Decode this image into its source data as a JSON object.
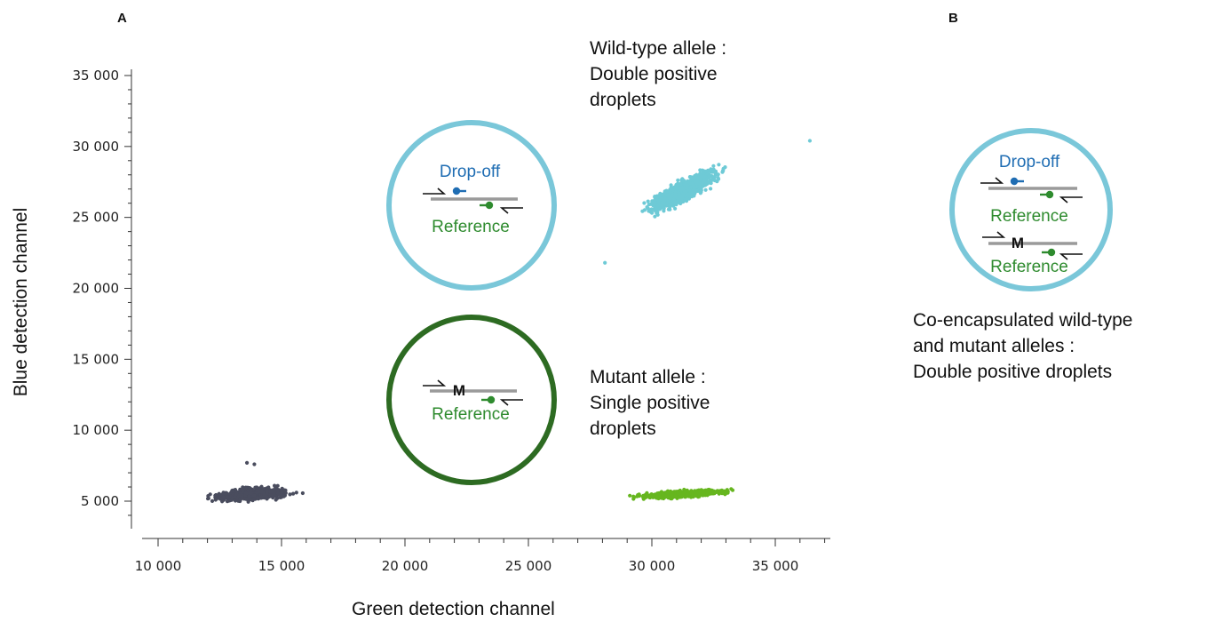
{
  "panels": {
    "a": "A",
    "b": "B"
  },
  "colors": {
    "double_positive_cluster": "#6ecad6",
    "single_positive_cluster": "#66b61f",
    "negative_cluster": "#4a4d5e",
    "circle_wildtype": "#7ac7d9",
    "circle_mutant": "#2d6b22",
    "dropoff_probe": "#1f6db3",
    "reference_probe": "#2e8b2e",
    "template_strand": "#9a9a9a"
  },
  "annotations": {
    "wildtype": [
      "Wild-type allele :",
      "Double positive",
      "droplets"
    ],
    "mutant": [
      "Mutant allele :",
      "Single positive",
      "droplets"
    ],
    "coencapsulated": [
      "Co-encapsulated wild-type",
      "and mutant alleles :",
      "Double positive droplets"
    ]
  },
  "schematics": {
    "wildtype_circle": {
      "top_label": "Drop-off",
      "bottom_label": "Reference"
    },
    "mutant_circle": {
      "mutation_mark": "M",
      "bottom_label": "Reference"
    },
    "coencapsulated_circle": {
      "top_label": "Drop-off",
      "mid_label": "Reference",
      "mutation_mark": "M",
      "bottom_label": "Reference"
    }
  },
  "chart_data": {
    "type": "scatter",
    "title": "",
    "xlabel": "Green detection channel",
    "ylabel": "Blue detection channel",
    "xlim": [
      9000,
      37000
    ],
    "ylim": [
      3000,
      35000
    ],
    "xticks": [
      10000,
      15000,
      20000,
      25000,
      30000,
      35000
    ],
    "xtick_labels": [
      "10 000",
      "15 000",
      "20 000",
      "25 000",
      "30 000",
      "35 000"
    ],
    "yticks": [
      5000,
      10000,
      15000,
      20000,
      25000,
      30000,
      35000
    ],
    "ytick_labels": [
      "5 000",
      "10 000",
      "15 000",
      "20 000",
      "25 000",
      "30 000",
      "35 000"
    ],
    "grid": false,
    "clusters": [
      {
        "label": "negative",
        "color": "#4a4d5e",
        "x_center": 13800,
        "x_spread": 2200,
        "y_center": 5500,
        "y_spread": 450,
        "x_range": [
          10800,
          16300
        ],
        "slope": 0.15
      },
      {
        "label": "single positive",
        "color": "#66b61f",
        "x_center": 31300,
        "x_spread": 2600,
        "y_center": 5500,
        "y_spread": 250,
        "x_range": [
          27400,
          35400
        ],
        "slope": 0.11
      },
      {
        "label": "double positive",
        "color": "#6ecad6",
        "x_center": 31300,
        "x_spread": 2100,
        "y_center": 26900,
        "y_spread": 900,
        "x_range": [
          27400,
          36400
        ],
        "slope": 0.9
      }
    ]
  }
}
